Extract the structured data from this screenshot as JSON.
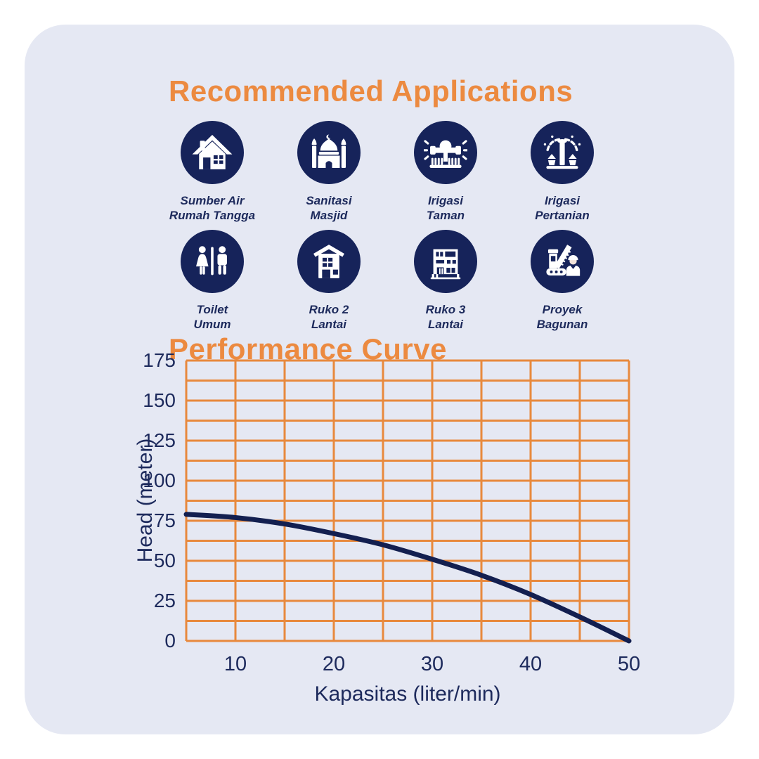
{
  "colors": {
    "card_bg": "#E5E8F3",
    "orange": "#EC8A40",
    "grid_orange": "#E8893D",
    "navy": "#16235A",
    "text_navy": "#1D2A5C",
    "curve_navy": "#131F50",
    "skin": "#F2E3DA"
  },
  "sections": {
    "applications": {
      "title": "Recommended Applications",
      "items": [
        {
          "icon": "house-icon",
          "line1": "Sumber Air",
          "line2": "Rumah Tangga"
        },
        {
          "icon": "mosque-icon",
          "line1": "Sanitasi",
          "line2": "Masjid"
        },
        {
          "icon": "sprinkler-icon",
          "line1": "Irigasi",
          "line2": "Taman"
        },
        {
          "icon": "fountain-icon",
          "line1": "Irigasi",
          "line2": "Pertanian"
        },
        {
          "icon": "toilet-icon",
          "line1": "Toilet",
          "line2": "Umum"
        },
        {
          "icon": "building-2-icon",
          "line1": "Ruko 2",
          "line2": "Lantai"
        },
        {
          "icon": "building-3-icon",
          "line1": "Ruko 3",
          "line2": "Lantai"
        },
        {
          "icon": "crane-worker-icon",
          "line1": "Proyek",
          "line2": "Bagunan"
        }
      ]
    },
    "performance": {
      "title": "Performance Curve"
    }
  },
  "chart_data": {
    "type": "line",
    "title": "Performance Curve",
    "xlabel": "Kapasitas (liter/min)",
    "ylabel": "Head (meter)",
    "x": [
      5,
      10,
      15,
      20,
      25,
      30,
      35,
      40,
      45,
      50
    ],
    "y": [
      79,
      77,
      73,
      67,
      60,
      51,
      41,
      29,
      15,
      0
    ],
    "xlim": [
      5,
      50
    ],
    "ylim": [
      0,
      175
    ],
    "xticks": [
      10,
      20,
      30,
      40,
      50
    ],
    "yticks": [
      0,
      25,
      50,
      75,
      100,
      125,
      150,
      175
    ],
    "x_minor_step": 5,
    "y_minor_step": 12.5,
    "grid": true,
    "legend": "none"
  }
}
